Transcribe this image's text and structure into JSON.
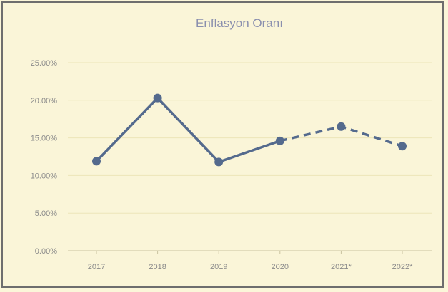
{
  "chart_data": {
    "type": "line",
    "title": "Enflasyon Oranı",
    "xlabel": "",
    "ylabel": "",
    "categories": [
      "2017",
      "2018",
      "2019",
      "2020",
      "2021*",
      "2022*"
    ],
    "values": [
      11.9,
      20.3,
      11.8,
      14.6,
      16.5,
      13.9
    ],
    "projected_from_index": 3,
    "ylim": [
      0,
      25
    ],
    "yticks": [
      "0.00%",
      "5.00%",
      "10.00%",
      "15.00%",
      "20.00%",
      "25.00%"
    ],
    "grid": true,
    "line_color": "#546a8d"
  }
}
